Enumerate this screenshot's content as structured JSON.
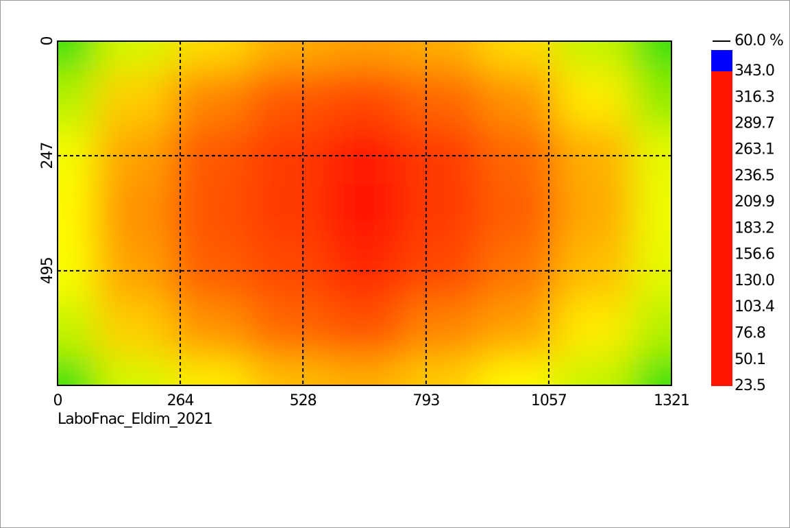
{
  "chart_data": {
    "type": "heatmap",
    "caption": "LaboFnac_Eldim_2021",
    "x": [
      0,
      165,
      330,
      495,
      660,
      826,
      991,
      1156,
      1321
    ],
    "y": [
      0,
      124,
      247,
      371,
      495,
      619,
      742
    ],
    "z": [
      [
        205,
        250,
        275,
        290,
        295,
        290,
        275,
        245,
        205
      ],
      [
        240,
        280,
        305,
        320,
        325,
        315,
        300,
        270,
        230
      ],
      [
        260,
        295,
        320,
        330,
        340,
        330,
        315,
        290,
        255
      ],
      [
        265,
        300,
        322,
        330,
        343,
        330,
        318,
        292,
        258
      ],
      [
        262,
        295,
        318,
        325,
        335,
        325,
        310,
        285,
        255
      ],
      [
        245,
        280,
        300,
        315,
        322,
        305,
        295,
        270,
        240
      ],
      [
        205,
        250,
        270,
        285,
        290,
        280,
        265,
        245,
        205
      ]
    ],
    "xlim": [
      0,
      1321
    ],
    "xticks": [
      0,
      264,
      528,
      793,
      1057,
      1321
    ],
    "ylim": [
      0,
      742
    ],
    "yticks": [
      0,
      247,
      495
    ],
    "y_inverted": true,
    "grid": true,
    "clim": [
      23.5,
      364.5
    ],
    "cticks": [
      {
        "value": 343,
        "label": "343.0"
      },
      316.3,
      289.7,
      263.1,
      236.5,
      209.9,
      183.2,
      156.6,
      {
        "value": 130,
        "label": "130.0"
      },
      103.4,
      76.8,
      50.1,
      23.5
    ],
    "colorscale": [
      "#ff1400",
      "#ff6400",
      "#ffb000",
      "#ffff00",
      "#a8f000",
      "#40e000",
      "#00e040",
      "#00e8a8",
      "#00f0f0",
      "#00b0ff",
      "#0070ff",
      "#0040ff",
      "#0000ff"
    ],
    "contour_level": {
      "value": 60,
      "label": "60.0 %"
    }
  }
}
